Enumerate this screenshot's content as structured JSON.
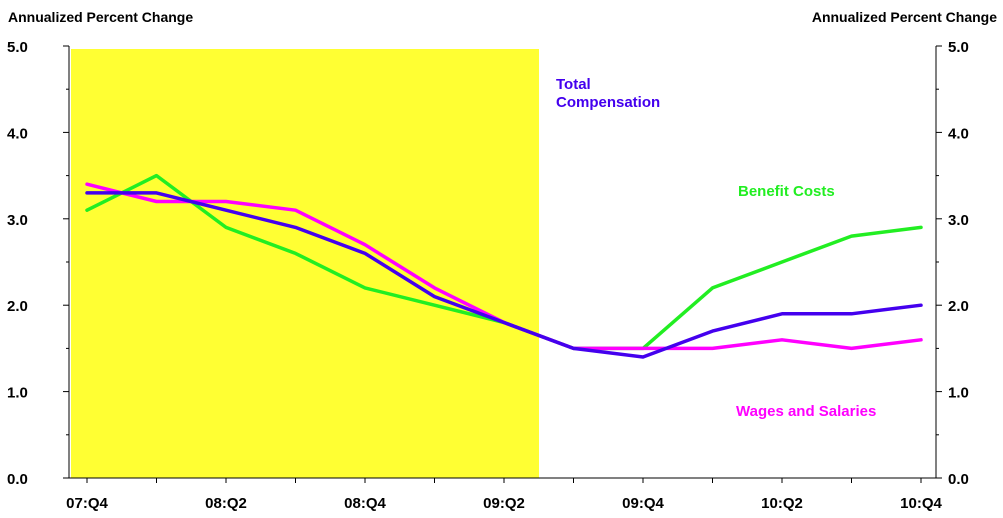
{
  "chart_data": {
    "type": "line",
    "ylabel_left": "Annualized Percent Change",
    "ylabel_right": "Annualized Percent Change",
    "ylim": [
      0,
      5
    ],
    "y_ticks": [
      "0.0",
      "1.0",
      "2.0",
      "3.0",
      "4.0",
      "5.0"
    ],
    "categories": [
      "07:Q4",
      "08:Q1",
      "08:Q2",
      "08:Q3",
      "08:Q4",
      "09:Q1",
      "09:Q2",
      "09:Q3",
      "09:Q4",
      "10:Q1",
      "10:Q2",
      "10:Q3",
      "10:Q4"
    ],
    "x_tick_labels": [
      "07:Q4",
      "",
      "08:Q2",
      "",
      "08:Q4",
      "",
      "09:Q2",
      "",
      "09:Q4",
      "",
      "10:Q2",
      "",
      "10:Q4"
    ],
    "shaded_region": {
      "from": "07:Q4",
      "to": "09:Q2",
      "color": "#ffff33"
    },
    "series": [
      {
        "name": "Total Compensation",
        "color": "#4400ee",
        "values": [
          3.3,
          3.3,
          3.1,
          2.9,
          2.6,
          2.1,
          1.8,
          1.5,
          1.4,
          1.7,
          1.9,
          1.9,
          2.0
        ]
      },
      {
        "name": "Benefit Costs",
        "color": "#22ee22",
        "values": [
          3.1,
          3.5,
          2.9,
          2.6,
          2.2,
          2.0,
          1.8,
          1.5,
          1.5,
          2.2,
          2.5,
          2.8,
          2.9
        ]
      },
      {
        "name": "Wages and Salaries",
        "color": "#ff00ff",
        "values": [
          3.4,
          3.2,
          3.2,
          3.1,
          2.7,
          2.2,
          1.8,
          1.5,
          1.5,
          1.5,
          1.6,
          1.5,
          1.6
        ]
      }
    ],
    "series_labels": [
      {
        "lines": [
          "Total",
          "Compensation"
        ],
        "color": "#4400ee"
      },
      {
        "lines": [
          "Benefit Costs"
        ],
        "color": "#22ee22"
      },
      {
        "lines": [
          "Wages and Salaries"
        ],
        "color": "#ff00ff"
      }
    ]
  }
}
